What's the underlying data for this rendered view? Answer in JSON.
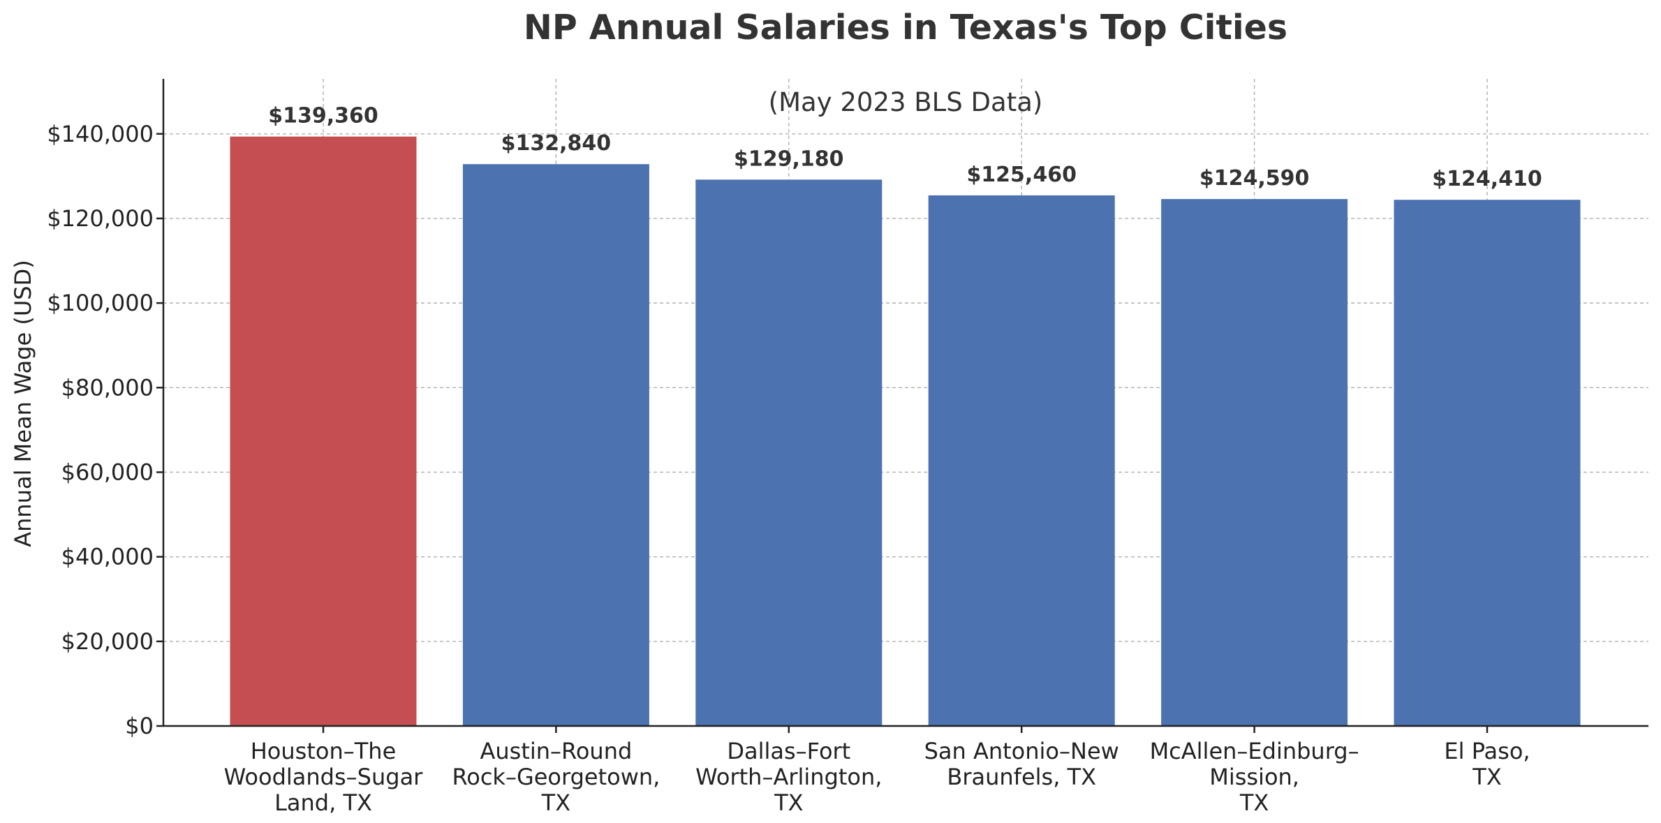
{
  "chart_data": {
    "type": "bar",
    "title": "NP Annual Salaries in Texas's Top Cities",
    "subtitle": "(May 2023 BLS Data)",
    "xlabel": "",
    "ylabel": "Annual Mean Wage (USD)",
    "categories": [
      [
        "Houston–The",
        "Woodlands–Sugar",
        "Land, TX"
      ],
      [
        "Austin–Round",
        "Rock–Georgetown,",
        "TX"
      ],
      [
        "Dallas–Fort",
        "Worth–Arlington,",
        "TX"
      ],
      [
        "San Antonio–New",
        "Braunfels, TX"
      ],
      [
        "McAllen–Edinburg–",
        "Mission,",
        "TX"
      ],
      [
        "El Paso,",
        "TX"
      ]
    ],
    "values": [
      139360,
      132840,
      129180,
      125460,
      124590,
      124410
    ],
    "data_labels": [
      "$139,360",
      "$132,840",
      "$129,180",
      "$125,460",
      "$124,590",
      "$124,410"
    ],
    "bar_colors": [
      "#c44e52",
      "#4c72b0",
      "#4c72b0",
      "#4c72b0",
      "#4c72b0",
      "#4c72b0"
    ],
    "ylim": [
      0,
      153000
    ],
    "yticks": [
      0,
      20000,
      40000,
      60000,
      80000,
      100000,
      120000,
      140000
    ],
    "ytick_labels": [
      "$0",
      "$20,000",
      "$40,000",
      "$60,000",
      "$80,000",
      "$100,000",
      "$120,000",
      "$140,000"
    ],
    "grid": true
  }
}
